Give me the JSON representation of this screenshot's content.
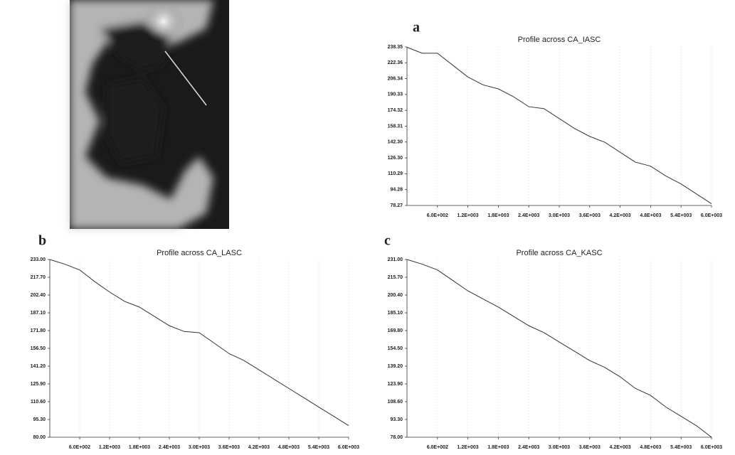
{
  "chart_data": [
    {
      "type": "line",
      "panel": "a",
      "title": "Profile across CA_IASC",
      "color": "#333333",
      "x": [
        0,
        300,
        600,
        900,
        1200,
        1500,
        1800,
        2100,
        2400,
        2700,
        3000,
        3300,
        3600,
        3900,
        4200,
        4500,
        4800,
        5100,
        5400,
        5700,
        6000
      ],
      "series": [
        {
          "values": [
            238,
            232,
            232,
            220,
            208,
            200,
            196,
            188,
            178,
            176,
            166,
            156,
            148,
            142,
            132,
            122,
            118,
            108,
            100,
            90,
            80
          ]
        }
      ],
      "xlim": [
        0,
        6000
      ],
      "xticks": [
        {
          "value": 600,
          "label": "6.0E+002"
        },
        {
          "value": 1200,
          "label": "1.2E+003"
        },
        {
          "value": 1800,
          "label": "1.8E+003"
        },
        {
          "value": 2400,
          "label": "2.4E+003"
        },
        {
          "value": 3000,
          "label": "3.0E+003"
        },
        {
          "value": 3600,
          "label": "3.6E+003"
        },
        {
          "value": 4200,
          "label": "4.2E+003"
        },
        {
          "value": 4800,
          "label": "4.8E+003"
        },
        {
          "value": 5400,
          "label": "5.4E+003"
        },
        {
          "value": 6000,
          "label": "6.0E+003"
        }
      ],
      "ylim": [
        78.27,
        238.35
      ],
      "yticks": [
        {
          "value": 78.27,
          "label": "78.27"
        },
        {
          "value": 94.28,
          "label": "94.28"
        },
        {
          "value": 110.29,
          "label": "110.29"
        },
        {
          "value": 126.3,
          "label": "126.30"
        },
        {
          "value": 142.3,
          "label": "142.30"
        },
        {
          "value": 158.31,
          "label": "158.31"
        },
        {
          "value": 174.32,
          "label": "174.32"
        },
        {
          "value": 190.33,
          "label": "190.33"
        },
        {
          "value": 206.34,
          "label": "206.34"
        },
        {
          "value": 222.36,
          "label": "222.36"
        },
        {
          "value": 238.35,
          "label": "238.35"
        }
      ]
    },
    {
      "type": "line",
      "panel": "b",
      "title": "Profile across CA_LASC",
      "color": "#333333",
      "x": [
        0,
        300,
        600,
        900,
        1200,
        1500,
        1800,
        2100,
        2400,
        2700,
        3000,
        3300,
        3600,
        3900,
        4200,
        4500,
        4800,
        5100,
        5400,
        5700,
        6000
      ],
      "series": [
        {
          "values": [
            233,
            229,
            224,
            214,
            205,
            197,
            192,
            184,
            176,
            171,
            170,
            161,
            152,
            146,
            138,
            130,
            122,
            114,
            106,
            98,
            90
          ]
        }
      ],
      "xlim": [
        0,
        6000
      ],
      "xticks": [
        {
          "value": 600,
          "label": "6.0E+002"
        },
        {
          "value": 1200,
          "label": "1.2E+003"
        },
        {
          "value": 1800,
          "label": "1.8E+003"
        },
        {
          "value": 2400,
          "label": "2.4E+003"
        },
        {
          "value": 3000,
          "label": "3.0E+003"
        },
        {
          "value": 3600,
          "label": "3.6E+003"
        },
        {
          "value": 4200,
          "label": "4.2E+003"
        },
        {
          "value": 4800,
          "label": "4.8E+003"
        },
        {
          "value": 5400,
          "label": "5.4E+003"
        },
        {
          "value": 6000,
          "label": "6.0E+003"
        }
      ],
      "ylim": [
        80,
        233
      ],
      "yticks": [
        {
          "value": 80,
          "label": "80.00"
        },
        {
          "value": 95.3,
          "label": "95.30"
        },
        {
          "value": 110.6,
          "label": "110.60"
        },
        {
          "value": 125.9,
          "label": "125.90"
        },
        {
          "value": 141.2,
          "label": "141.20"
        },
        {
          "value": 156.5,
          "label": "156.50"
        },
        {
          "value": 171.8,
          "label": "171.80"
        },
        {
          "value": 187.1,
          "label": "187.10"
        },
        {
          "value": 202.4,
          "label": "202.40"
        },
        {
          "value": 217.7,
          "label": "217.70"
        },
        {
          "value": 233,
          "label": "233.00"
        }
      ]
    },
    {
      "type": "line",
      "panel": "c",
      "title": "Profile across CA_KASC",
      "color": "#333333",
      "x": [
        0,
        300,
        600,
        900,
        1200,
        1500,
        1800,
        2100,
        2400,
        2700,
        3000,
        3300,
        3600,
        3900,
        4200,
        4500,
        4800,
        5100,
        5400,
        5700,
        6000
      ],
      "series": [
        {
          "values": [
            231,
            227,
            222,
            213,
            204,
            197,
            190,
            182,
            174,
            168,
            160,
            152,
            144,
            138,
            130,
            120,
            114,
            104,
            96,
            88,
            78
          ]
        }
      ],
      "xlim": [
        0,
        6000
      ],
      "xticks": [
        {
          "value": 600,
          "label": "6.0E+002"
        },
        {
          "value": 1200,
          "label": "1.2E+003"
        },
        {
          "value": 1800,
          "label": "1.8E+003"
        },
        {
          "value": 2400,
          "label": "2.4E+003"
        },
        {
          "value": 3000,
          "label": "3.0E+003"
        },
        {
          "value": 3600,
          "label": "3.6E+003"
        },
        {
          "value": 4200,
          "label": "4.2E+003"
        },
        {
          "value": 4800,
          "label": "4.8E+003"
        },
        {
          "value": 5400,
          "label": "5.4E+003"
        },
        {
          "value": 6000,
          "label": "6.0E+003"
        }
      ],
      "ylim": [
        78,
        231
      ],
      "yticks": [
        {
          "value": 78,
          "label": "78.00"
        },
        {
          "value": 93.3,
          "label": "93.30"
        },
        {
          "value": 108.6,
          "label": "108.60"
        },
        {
          "value": 123.9,
          "label": "123.90"
        },
        {
          "value": 139.2,
          "label": "139.20"
        },
        {
          "value": 154.5,
          "label": "154.50"
        },
        {
          "value": 169.8,
          "label": "169.80"
        },
        {
          "value": 185.1,
          "label": "185.10"
        },
        {
          "value": 200.4,
          "label": "200.40"
        },
        {
          "value": 215.7,
          "label": "215.70"
        },
        {
          "value": 231,
          "label": "231.00"
        }
      ]
    }
  ]
}
